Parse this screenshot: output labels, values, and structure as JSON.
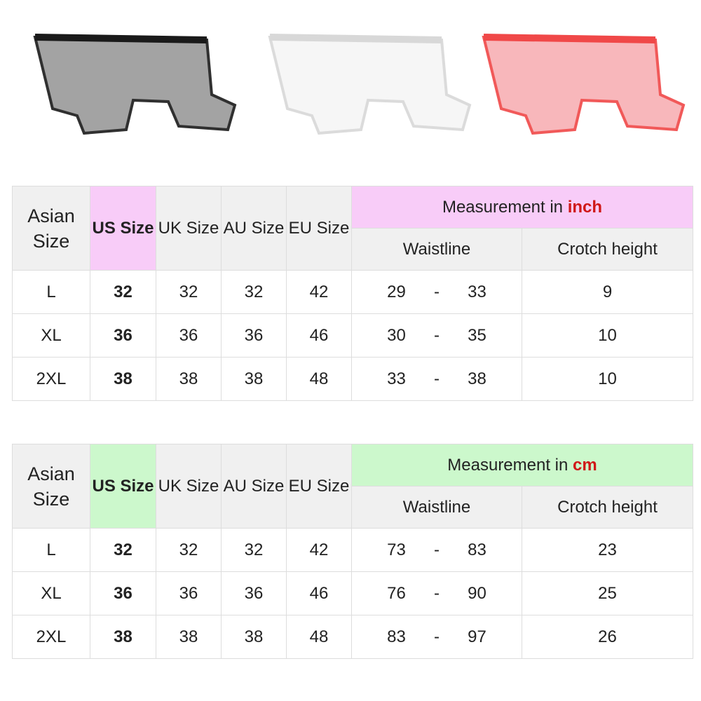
{
  "products": [
    {
      "color_name": "black",
      "color": "#1a1a1a"
    },
    {
      "color_name": "white",
      "color": "#d8d8d8"
    },
    {
      "color_name": "red",
      "color": "#f04848"
    }
  ],
  "colors": {
    "inch_header": "#f8ccf8",
    "cm_header": "#ccf8cc",
    "unit_text": "#d01818",
    "header_bg": "#f0f0f0"
  },
  "headers": {
    "asian": "Asian Size",
    "us": "US Size",
    "uk": "UK Size",
    "au": "AU Size",
    "eu": "EU Size",
    "measurement_prefix": "Measurement in ",
    "waistline": "Waistline",
    "crotch": "Crotch height",
    "dash": "-"
  },
  "tables": [
    {
      "unit": "inch",
      "rows": [
        {
          "asian": "L",
          "us": "32",
          "uk": "32",
          "au": "32",
          "eu": "42",
          "waist_min": "29",
          "waist_max": "33",
          "crotch": "9"
        },
        {
          "asian": "XL",
          "us": "36",
          "uk": "36",
          "au": "36",
          "eu": "46",
          "waist_min": "30",
          "waist_max": "35",
          "crotch": "10"
        },
        {
          "asian": "2XL",
          "us": "38",
          "uk": "38",
          "au": "38",
          "eu": "48",
          "waist_min": "33",
          "waist_max": "38",
          "crotch": "10"
        }
      ]
    },
    {
      "unit": "cm",
      "rows": [
        {
          "asian": "L",
          "us": "32",
          "uk": "32",
          "au": "32",
          "eu": "42",
          "waist_min": "73",
          "waist_max": "83",
          "crotch": "23"
        },
        {
          "asian": "XL",
          "us": "36",
          "uk": "36",
          "au": "36",
          "eu": "46",
          "waist_min": "76",
          "waist_max": "90",
          "crotch": "25"
        },
        {
          "asian": "2XL",
          "us": "38",
          "uk": "38",
          "au": "38",
          "eu": "48",
          "waist_min": "83",
          "waist_max": "97",
          "crotch": "26"
        }
      ]
    }
  ]
}
